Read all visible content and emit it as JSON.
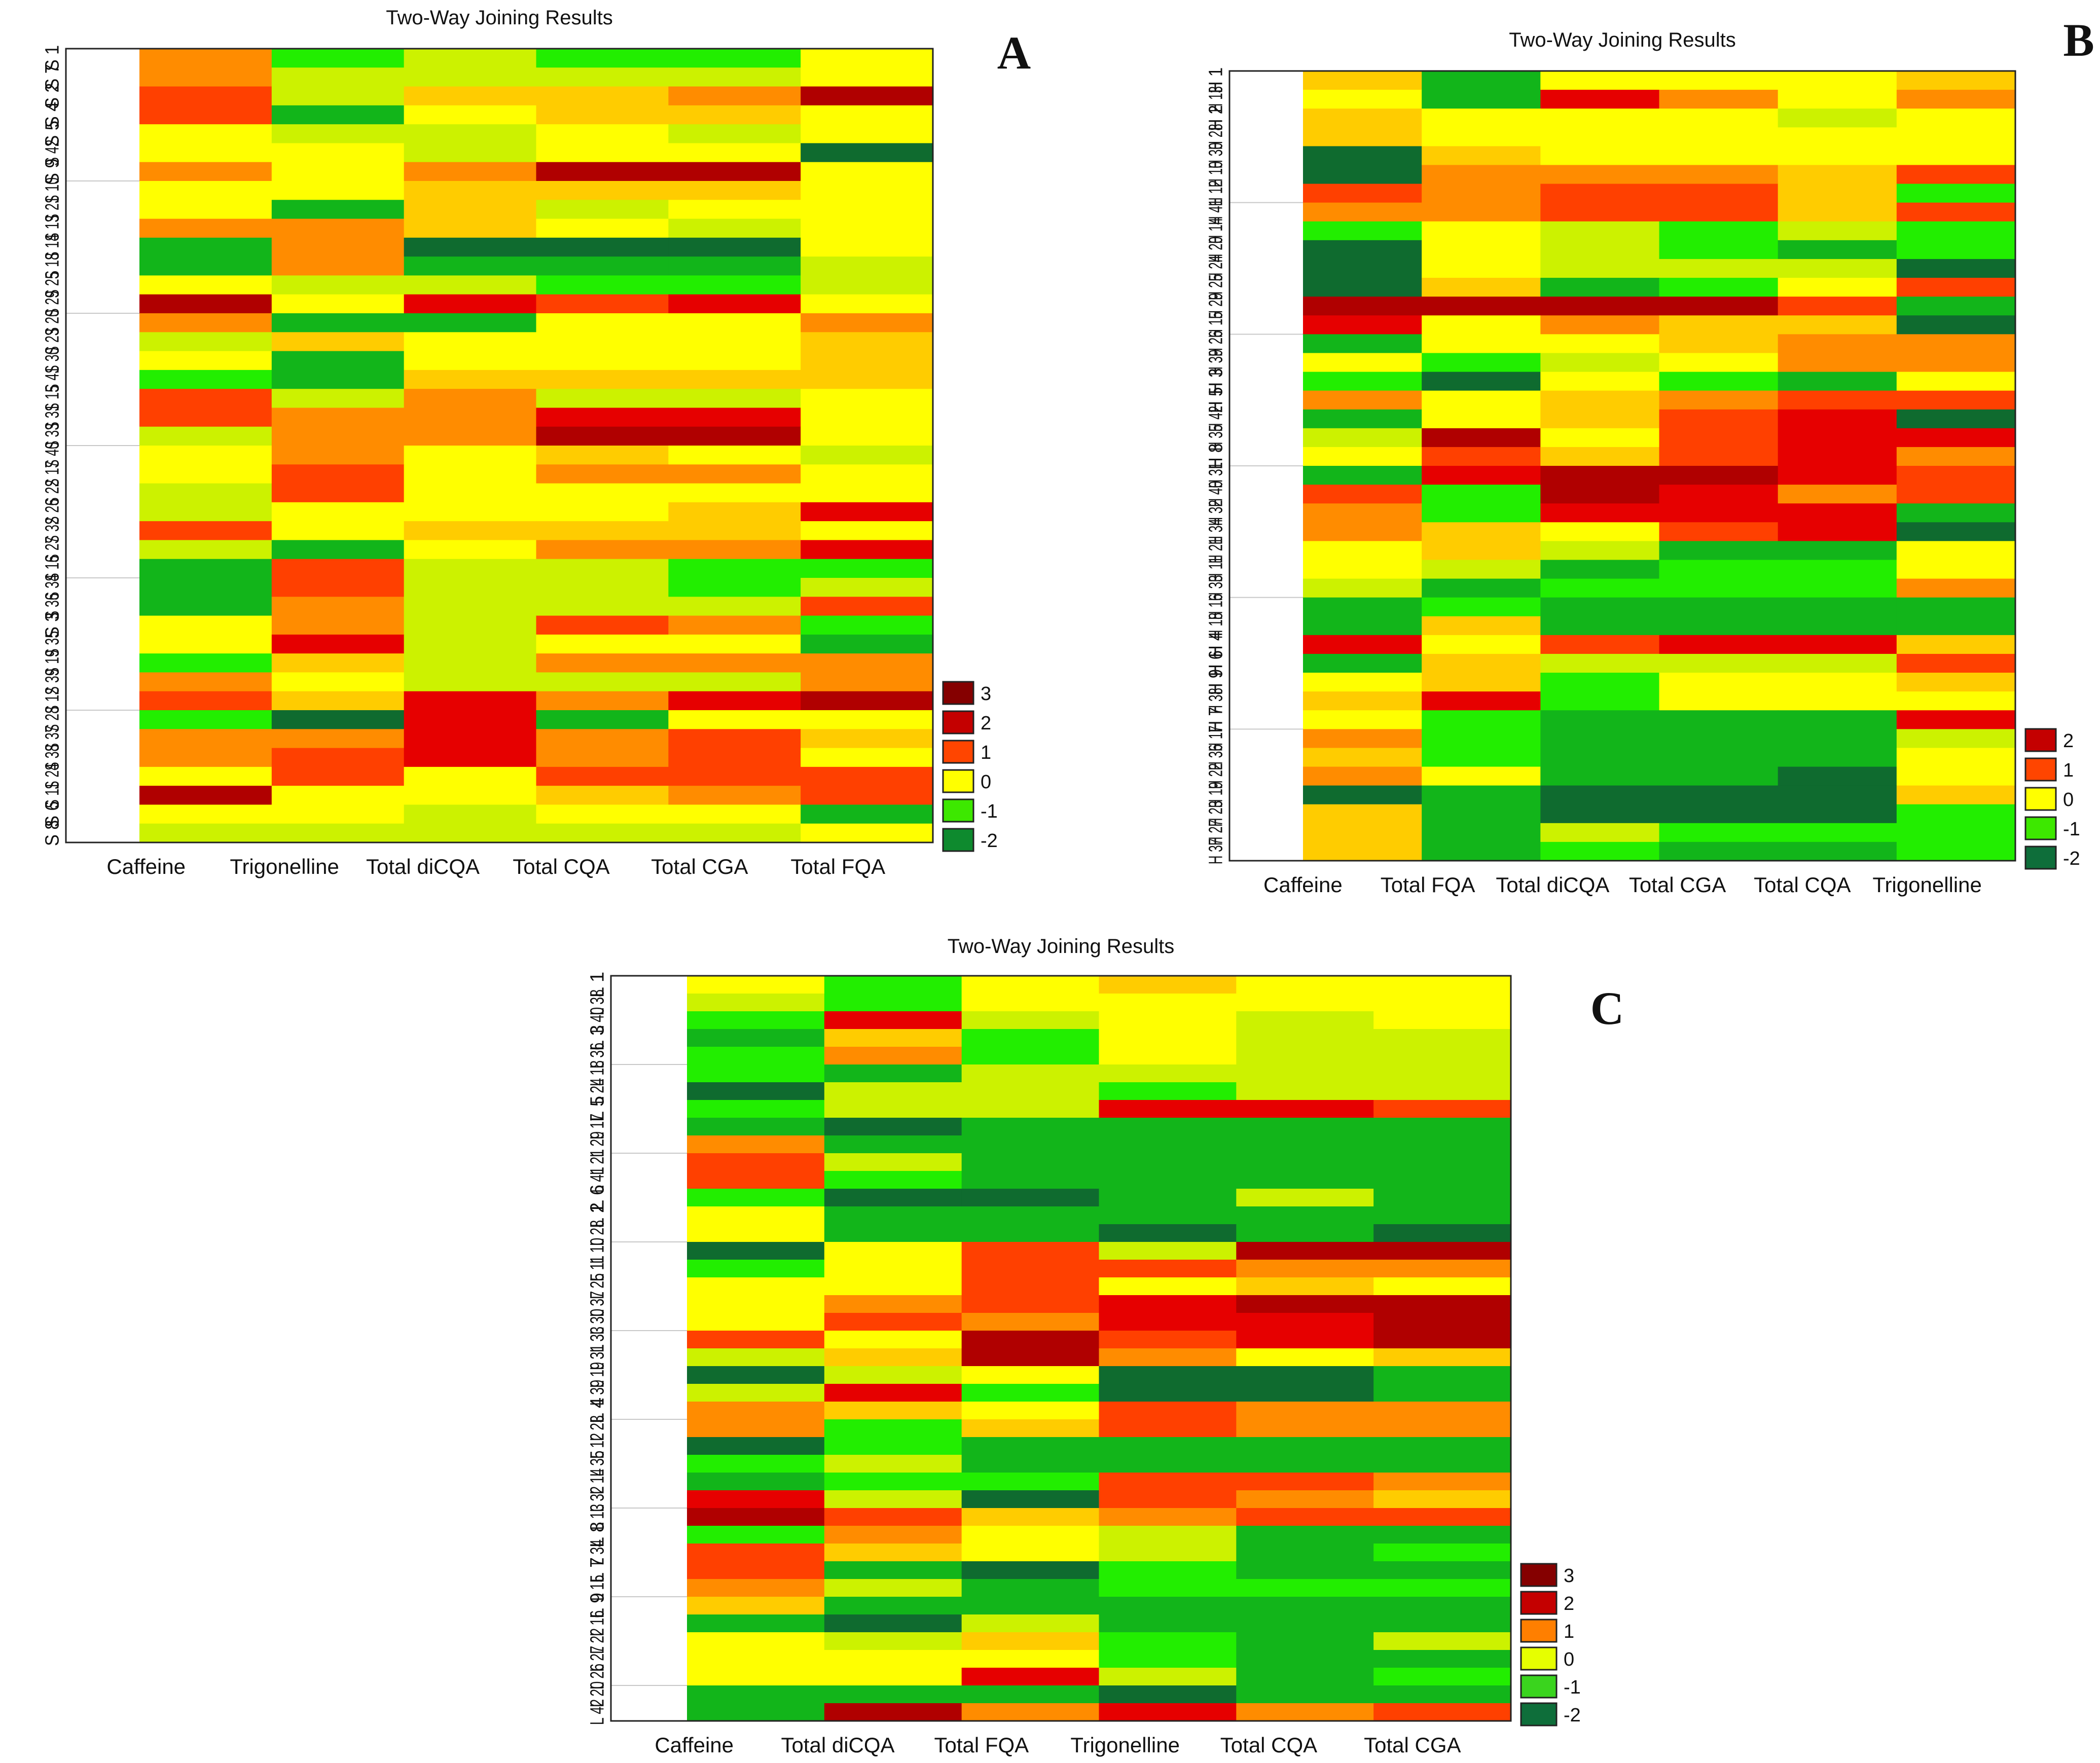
{
  "chart_data": [
    {
      "id": "A",
      "type": "heatmap",
      "title": "Two-Way Joining Results",
      "panel_letter": "A",
      "columns": [
        "Caffeine",
        "Trigonelline",
        "Total diCQA",
        "Total CQA",
        "Total CGA",
        "Total FQA"
      ],
      "rows": [
        "S 1",
        "S 7",
        "S 2",
        "S 4",
        "S 5",
        "S 42",
        "S 9",
        "S 10",
        "S 21",
        "S 13",
        "S 14",
        "S 18",
        "S 25",
        "S 29",
        "S 20",
        "S 23",
        "S 30",
        "S 41",
        "S 15",
        "S 31",
        "S 33",
        "S 40",
        "S 17",
        "S 22",
        "S 26",
        "S 32",
        "S 27",
        "S 16",
        "S 34",
        "S 36",
        "S 3",
        "S 35",
        "S 19",
        "S 39",
        "S 12",
        "S 28",
        "S 37",
        "S 38",
        "S 24",
        "S 11",
        "S 6",
        "S 8"
      ],
      "values": [
        [
          1,
          -1,
          -0.5,
          -1,
          -1,
          0
        ],
        [
          1,
          -0.5,
          -0.5,
          -0.5,
          -0.5,
          0
        ],
        [
          1.5,
          -0.5,
          0.5,
          0.5,
          1,
          2.5
        ],
        [
          1.5,
          -1.5,
          0,
          0.5,
          0.5,
          0
        ],
        [
          0,
          -0.5,
          -0.5,
          0,
          -0.5,
          0
        ],
        [
          0,
          0,
          -0.5,
          0,
          0,
          -2
        ],
        [
          1,
          0,
          1,
          2.5,
          2.5,
          0
        ],
        [
          0,
          0,
          0.5,
          0.5,
          0.5,
          0
        ],
        [
          0,
          -1.5,
          0.5,
          -0.5,
          0,
          0
        ],
        [
          1,
          1,
          0.5,
          0,
          -0.5,
          0
        ],
        [
          -1.5,
          1,
          -2,
          -2,
          -2,
          0
        ],
        [
          -1.5,
          1,
          -1.5,
          -1.5,
          -1.5,
          -0.5
        ],
        [
          0,
          -0.5,
          -0.5,
          -1,
          -1,
          -0.5
        ],
        [
          2.5,
          0,
          2,
          1.5,
          2,
          0
        ],
        [
          1,
          -1.5,
          -1.5,
          0,
          0,
          1
        ],
        [
          -0.5,
          0.5,
          0,
          0,
          0,
          0.5
        ],
        [
          0,
          -1.5,
          0,
          0,
          0,
          0.5
        ],
        [
          -1,
          -1.5,
          0.5,
          0.5,
          0.5,
          0.5
        ],
        [
          1.5,
          -0.5,
          1,
          -0.5,
          -0.5,
          0
        ],
        [
          1.5,
          1,
          1,
          2,
          2,
          0
        ],
        [
          -0.5,
          1,
          1,
          2.5,
          2.5,
          0
        ],
        [
          0,
          1,
          0,
          0.5,
          0,
          -0.5
        ],
        [
          0,
          1.5,
          0,
          1,
          1,
          0
        ],
        [
          -0.5,
          1.5,
          0,
          0,
          0,
          0
        ],
        [
          -0.5,
          0,
          0,
          0,
          0.5,
          2
        ],
        [
          1.5,
          0,
          0.5,
          0.5,
          0.5,
          0
        ],
        [
          -0.5,
          -1.5,
          0,
          1,
          1,
          2
        ],
        [
          -1.5,
          1.5,
          -0.5,
          -0.5,
          -1,
          -1
        ],
        [
          -1.5,
          1.5,
          -0.5,
          -0.5,
          -1,
          -0.5
        ],
        [
          -1.5,
          1,
          -0.5,
          -0.5,
          -0.5,
          1.5
        ],
        [
          0,
          1,
          -0.5,
          1.5,
          1,
          -1
        ],
        [
          0,
          2,
          -0.5,
          0,
          0,
          -1.5
        ],
        [
          -1,
          0.5,
          -0.5,
          1,
          1,
          1
        ],
        [
          1,
          0,
          -0.5,
          -0.5,
          -0.5,
          1
        ],
        [
          1.5,
          0.5,
          2,
          1,
          2,
          2.5
        ],
        [
          -1,
          -2,
          2,
          -1.5,
          0,
          0
        ],
        [
          1,
          1,
          2,
          1,
          1.5,
          0.5
        ],
        [
          1,
          1.5,
          2,
          1,
          1.5,
          0
        ],
        [
          0,
          1.5,
          0,
          1.5,
          1.5,
          1.5
        ],
        [
          2.5,
          0,
          0,
          0.5,
          1,
          1.5
        ],
        [
          0,
          0,
          -0.5,
          0,
          0,
          -1.5
        ],
        [
          -0.5,
          -0.5,
          -0.5,
          -0.5,
          -0.5,
          0
        ]
      ],
      "legend": [
        "3",
        "2",
        "1",
        "0",
        "-1",
        "-2"
      ],
      "legend_colors": [
        "#850000",
        "#c40000",
        "#ff4500",
        "#ffff00",
        "#3de800",
        "#0e8a2e"
      ]
    },
    {
      "id": "B",
      "type": "heatmap",
      "title": "Two-Way Joining Results",
      "panel_letter": "B",
      "columns": [
        "Caffeine",
        "Total FQA",
        "Total diCQA",
        "Total CGA",
        "Total CQA",
        "Trigonelline"
      ],
      "rows": [
        "H 1",
        "H 13",
        "H 2",
        "H 28",
        "H 30",
        "H 10",
        "H 12",
        "H 41",
        "H 14",
        "H 20",
        "H 24",
        "H 25",
        "H 29",
        "H 15",
        "H 26",
        "H 39",
        "H 3",
        "H 5",
        "H 42",
        "H 35",
        "H 8",
        "H 31",
        "H 40",
        "H 32",
        "H 34",
        "H 21",
        "H 11",
        "H 33",
        "H 16",
        "H 18",
        "H 4",
        "H 6",
        "H 9",
        "H 38",
        "H 7",
        "H 17",
        "H 36",
        "H 22",
        "H 19",
        "H 23",
        "H 27",
        "H 37"
      ],
      "values": [
        [
          0.5,
          -1.5,
          0,
          0,
          0,
          0.5
        ],
        [
          0,
          -1.5,
          2,
          1,
          0,
          1
        ],
        [
          0.5,
          0,
          0,
          0,
          -0.5,
          0
        ],
        [
          0.5,
          0,
          0,
          0,
          0,
          0
        ],
        [
          -2,
          0.5,
          0,
          0,
          0,
          0
        ],
        [
          -2,
          1,
          1,
          1,
          0.5,
          1.5
        ],
        [
          1.5,
          1,
          1.5,
          1.5,
          0.5,
          -1
        ],
        [
          1,
          1,
          1.5,
          1.5,
          0.5,
          1.5
        ],
        [
          -1,
          0,
          -0.5,
          -1,
          -0.5,
          -1
        ],
        [
          -2,
          0,
          -0.5,
          -1,
          -1.5,
          -1
        ],
        [
          -2,
          0,
          -0.5,
          -0.5,
          -0.5,
          -2
        ],
        [
          -2,
          0.5,
          -1.5,
          -1,
          0,
          1.5
        ],
        [
          2.5,
          2.5,
          2.5,
          2.5,
          1.5,
          -1.5
        ],
        [
          2,
          0,
          1,
          0.5,
          0.5,
          -2
        ],
        [
          -1.5,
          0,
          0,
          0.5,
          1,
          1
        ],
        [
          0,
          -1,
          -0.5,
          0,
          1,
          1
        ],
        [
          -1,
          -2,
          0,
          -1,
          -1.5,
          0
        ],
        [
          1,
          0,
          0.5,
          1,
          1.5,
          1.5
        ],
        [
          -1.5,
          0,
          0.5,
          1.5,
          2,
          -2
        ],
        [
          -0.5,
          2.5,
          0,
          1.5,
          2,
          2
        ],
        [
          0,
          1.5,
          0.5,
          1.5,
          2,
          1
        ],
        [
          -1.5,
          2,
          2.5,
          2.5,
          2,
          1.5
        ],
        [
          1.5,
          -1,
          2.5,
          2,
          1,
          1.5
        ],
        [
          1,
          -1,
          2,
          2,
          2,
          -1.5
        ],
        [
          1,
          0.5,
          0,
          1.5,
          2,
          -2
        ],
        [
          0,
          0.5,
          -0.5,
          -1.5,
          -1.5,
          0
        ],
        [
          0,
          -0.5,
          -1.5,
          -1,
          -1,
          0
        ],
        [
          -0.5,
          -1.5,
          -1,
          -1,
          -1,
          1
        ],
        [
          -1.5,
          -1,
          -1.5,
          -1.5,
          -1.5,
          -1.5
        ],
        [
          -1.5,
          0.5,
          -1.5,
          -1.5,
          -1.5,
          -1.5
        ],
        [
          2,
          0,
          1.5,
          2,
          2,
          0.5
        ],
        [
          -1.5,
          0.5,
          -0.5,
          -0.5,
          -0.5,
          1.5
        ],
        [
          0,
          0.5,
          -1,
          0,
          0,
          0.5
        ],
        [
          0.5,
          2,
          -1,
          0,
          0,
          0
        ],
        [
          0,
          -1,
          -1.5,
          -1.5,
          -1.5,
          2
        ],
        [
          1,
          -1,
          -1.5,
          -1.5,
          -1.5,
          -0.5
        ],
        [
          0.5,
          -1,
          -1.5,
          -1.5,
          -1.5,
          0
        ],
        [
          1,
          0,
          -1.5,
          -1.5,
          -2,
          0
        ],
        [
          -2,
          -1.5,
          -2,
          -2,
          -2,
          0.5
        ],
        [
          0.5,
          -1.5,
          -2,
          -2,
          -2,
          -1
        ],
        [
          0.5,
          -1.5,
          -0.5,
          -1,
          -1,
          -1
        ],
        [
          0.5,
          -1.5,
          -1,
          -1.5,
          -1.5,
          -1
        ]
      ],
      "legend": [
        "2",
        "1",
        "0",
        "-1",
        "-2"
      ],
      "legend_colors": [
        "#c40000",
        "#ff4500",
        "#ffff00",
        "#3de800",
        "#0e6e3a"
      ]
    },
    {
      "id": "C",
      "type": "heatmap",
      "title": "Two-Way Joining Results",
      "panel_letter": "C",
      "columns": [
        "Caffeine",
        "Total diCQA",
        "Total FQA",
        "Trigonelline",
        "Total CQA",
        "Total CGA"
      ],
      "rows": [
        "L 1",
        "L 38",
        "L 40",
        "L 3",
        "L 36",
        "L 18",
        "L 24",
        "L 5",
        "L 17",
        "L 29",
        "L 21",
        "L 41",
        "L 6",
        "L 2",
        "L 28",
        "L 10",
        "L 11",
        "L 25",
        "L 37",
        "L 30",
        "L 33",
        "L 31",
        "L 19",
        "L 39",
        "L 4",
        "L 23",
        "L 12",
        "L 35",
        "L 14",
        "L 32",
        "L 13",
        "L 8",
        "L 34",
        "L 7",
        "L 15",
        "L 9",
        "L 16",
        "L 22",
        "L 27",
        "L 26",
        "L 20",
        "L 42"
      ],
      "values": [
        [
          0,
          -1,
          0,
          0.5,
          0,
          0
        ],
        [
          -0.5,
          -1,
          0,
          0,
          0,
          0
        ],
        [
          -1,
          2,
          -0.5,
          0,
          -0.5,
          0
        ],
        [
          -1.5,
          0.5,
          -1,
          0,
          -0.5,
          -0.5
        ],
        [
          -1,
          1,
          -1,
          0,
          -0.5,
          -0.5
        ],
        [
          -1,
          -1.5,
          -0.5,
          -0.5,
          -0.5,
          -0.5
        ],
        [
          -2,
          -0.5,
          -0.5,
          -1,
          -0.5,
          -0.5
        ],
        [
          -1,
          -0.5,
          -0.5,
          2,
          2,
          1.5
        ],
        [
          -1.5,
          -2,
          -1.5,
          -1.5,
          -1.5,
          -1.5
        ],
        [
          1,
          -1.5,
          -1.5,
          -1.5,
          -1.5,
          -1.5
        ],
        [
          1.5,
          -0.5,
          -1.5,
          -1.5,
          -1.5,
          -1.5
        ],
        [
          1.5,
          -1,
          -1.5,
          -1.5,
          -1.5,
          -1.5
        ],
        [
          -1,
          -2,
          -2,
          -1.5,
          -0.5,
          -1.5
        ],
        [
          0,
          -1.5,
          -1.5,
          -1.5,
          -1.5,
          -1.5
        ],
        [
          0,
          -1.5,
          -1.5,
          -2,
          -1.5,
          -2
        ],
        [
          -2,
          0,
          1.5,
          -0.5,
          2.5,
          2.5
        ],
        [
          -1,
          0,
          1.5,
          1.5,
          1,
          1
        ],
        [
          0,
          0,
          1.5,
          0,
          0.5,
          0
        ],
        [
          0,
          1,
          1.5,
          2,
          2.5,
          2.5
        ],
        [
          0,
          1.5,
          1,
          2,
          2,
          2.5
        ],
        [
          1.5,
          0,
          2.5,
          1.5,
          2,
          2.5
        ],
        [
          -0.5,
          0.5,
          2.5,
          1,
          0,
          0.5
        ],
        [
          -2,
          -0.5,
          0,
          -2,
          -2,
          -1.5
        ],
        [
          -0.5,
          2,
          -1,
          -2,
          -2,
          -1.5
        ],
        [
          1,
          0.5,
          0,
          1.5,
          1,
          1
        ],
        [
          1,
          -1,
          0.5,
          1.5,
          1,
          1
        ],
        [
          -2,
          -1,
          -1.5,
          -1.5,
          -1.5,
          -1.5
        ],
        [
          -1,
          -0.5,
          -1.5,
          -1.5,
          -1.5,
          -1.5
        ],
        [
          -1.5,
          -1,
          -1,
          1.5,
          1.5,
          1
        ],
        [
          2,
          -0.5,
          -2,
          1.5,
          1,
          0.5
        ],
        [
          2.5,
          1.5,
          0.5,
          1,
          1.5,
          1.5
        ],
        [
          -1,
          1,
          0,
          -0.5,
          -1.5,
          -1.5
        ],
        [
          1.5,
          0.5,
          0,
          -0.5,
          -1.5,
          -1
        ],
        [
          1.5,
          -1.5,
          -2,
          -1,
          -1.5,
          -1.5
        ],
        [
          1,
          -0.5,
          -1.5,
          -1,
          -1,
          -1
        ],
        [
          0.5,
          -1.5,
          -1.5,
          -1.5,
          -1.5,
          -1.5
        ],
        [
          -1.5,
          -2,
          -0.5,
          -1.5,
          -1.5,
          -1.5
        ],
        [
          0,
          -0.5,
          0.5,
          -1,
          -1.5,
          -0.5
        ],
        [
          0,
          0,
          0,
          -1,
          -1.5,
          -1.5
        ],
        [
          0,
          0,
          2,
          -0.5,
          -1.5,
          -1
        ],
        [
          -1.5,
          -1.5,
          -1.5,
          -2,
          -1.5,
          -1.5
        ],
        [
          -1.5,
          2.5,
          1,
          2,
          1,
          1.5
        ]
      ],
      "legend": [
        "3",
        "2",
        "1",
        "0",
        "-1",
        "-2"
      ],
      "legend_colors": [
        "#850000",
        "#c40000",
        "#ff7f00",
        "#e6ff00",
        "#3ad41e",
        "#0e6e3a"
      ]
    }
  ]
}
